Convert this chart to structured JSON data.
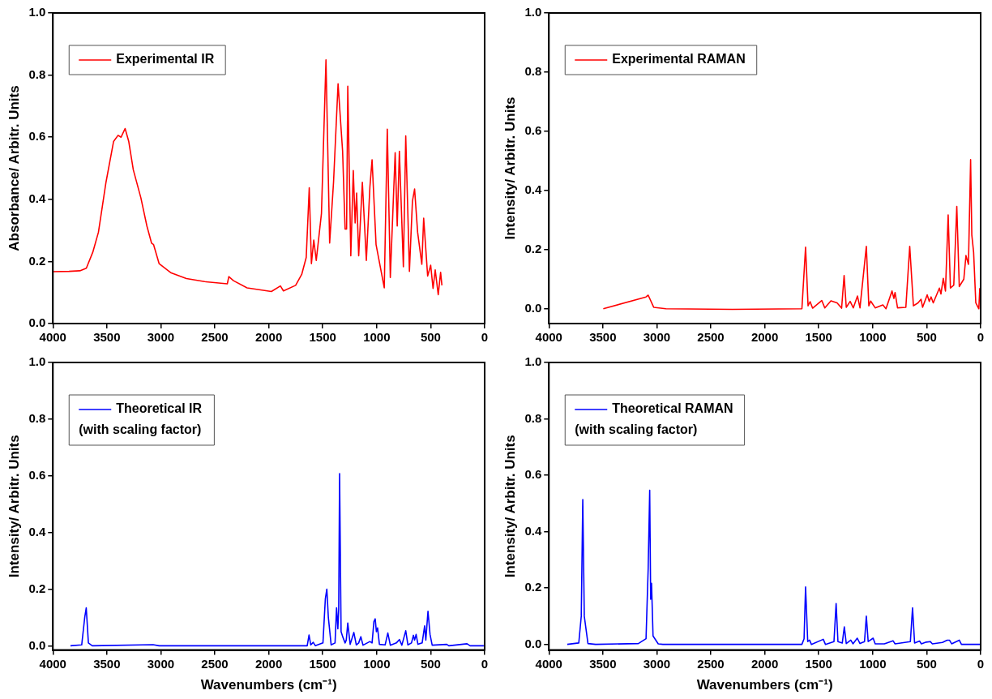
{
  "chart_data": [
    {
      "type": "line",
      "ylabel": "Absorbance/ Arbitr. Units",
      "xlim": [
        4000,
        0
      ],
      "xticks": [
        4000,
        3500,
        3000,
        2500,
        2000,
        1500,
        1000,
        500,
        0
      ],
      "ylim": [
        0,
        1
      ],
      "yticks": [
        {
          "value": 0,
          "label": "0.0"
        },
        {
          "value": 0.2,
          "label": "0.2"
        },
        {
          "value": 0.4,
          "label": "0.4"
        },
        {
          "value": 0.6,
          "label": "0.6"
        },
        {
          "value": 0.8,
          "label": "0.8"
        },
        {
          "value": 1,
          "label": "1.0"
        }
      ],
      "grid": false,
      "legend": "top left",
      "series": [
        {
          "name": "Experimental IR",
          "color": "#ff0000",
          "x": [
            4000,
            3850,
            3750,
            3690,
            3630,
            3578,
            3508,
            3438,
            3396,
            3368,
            3331,
            3297,
            3255,
            3185,
            3129,
            3086,
            3067,
            3016,
            2904,
            2763,
            2594,
            2384,
            2370,
            2327,
            2201,
            1976,
            1892,
            1864,
            1751,
            1695,
            1653,
            1625,
            1605,
            1583,
            1560,
            1512,
            1470,
            1436,
            1400,
            1358,
            1316,
            1293,
            1279,
            1268,
            1240,
            1217,
            1200,
            1186,
            1167,
            1133,
            1096,
            1063,
            1043,
            1006,
            930,
            902,
            874,
            829,
            810,
            790,
            753,
            731,
            697,
            669,
            649,
            621,
            582,
            565,
            528,
            500,
            478,
            458,
            430,
            408,
            396
          ],
          "values": [
            0.167,
            0.168,
            0.17,
            0.178,
            0.23,
            0.294,
            0.455,
            0.586,
            0.606,
            0.6,
            0.628,
            0.586,
            0.495,
            0.405,
            0.314,
            0.259,
            0.254,
            0.193,
            0.163,
            0.145,
            0.135,
            0.128,
            0.151,
            0.138,
            0.115,
            0.103,
            0.121,
            0.105,
            0.123,
            0.158,
            0.213,
            0.437,
            0.193,
            0.269,
            0.203,
            0.354,
            0.849,
            0.259,
            0.455,
            0.772,
            0.555,
            0.304,
            0.304,
            0.764,
            0.218,
            0.493,
            0.324,
            0.42,
            0.218,
            0.455,
            0.203,
            0.44,
            0.527,
            0.254,
            0.115,
            0.626,
            0.148,
            0.55,
            0.314,
            0.555,
            0.183,
            0.604,
            0.168,
            0.394,
            0.433,
            0.294,
            0.191,
            0.339,
            0.153,
            0.188,
            0.113,
            0.173,
            0.093,
            0.165,
            0.123
          ]
        }
      ]
    },
    {
      "type": "line",
      "ylabel": "Intensity/ Arbitr. Units",
      "xlim": [
        4000,
        0
      ],
      "xticks": [
        4000,
        3500,
        3000,
        2500,
        2000,
        1500,
        1000,
        500,
        0
      ],
      "ylim": [
        -0.05,
        1
      ],
      "yticks": [
        {
          "value": 0,
          "label": "0.0"
        },
        {
          "value": 0.2,
          "label": "0.2"
        },
        {
          "value": 0.4,
          "label": "0.4"
        },
        {
          "value": 0.6,
          "label": "0.6"
        },
        {
          "value": 0.8,
          "label": "0.8"
        },
        {
          "value": 1,
          "label": "1.0"
        }
      ],
      "grid": false,
      "legend": "top left",
      "series": [
        {
          "name": "Experimental RAMAN",
          "color": "#ff0000",
          "x": [
            3496,
            3100,
            3080,
            3029,
            2916,
            2300,
            1656,
            1622,
            1599,
            1580,
            1557,
            1472,
            1444,
            1387,
            1330,
            1288,
            1265,
            1245,
            1209,
            1180,
            1141,
            1118,
            1059,
            1036,
            1019,
            977,
            906,
            877,
            821,
            804,
            793,
            770,
            693,
            657,
            623,
            580,
            552,
            538,
            495,
            476,
            459,
            439,
            382,
            368,
            346,
            326,
            301,
            280,
            249,
            221,
            198,
            156,
            136,
            113,
            93,
            82,
            65,
            45,
            17,
            8
          ],
          "values": [
            0,
            0.04,
            0.046,
            0.005,
            0,
            -0.002,
            0,
            0.208,
            0.01,
            0.024,
            0.002,
            0.028,
            0.003,
            0.027,
            0.02,
            0.002,
            0.112,
            0.005,
            0.025,
            0.003,
            0.043,
            0.003,
            0.211,
            0.01,
            0.026,
            0.003,
            0.013,
            0,
            0.06,
            0.035,
            0.055,
            0.003,
            0.005,
            0.211,
            0.01,
            0.02,
            0.032,
            0.005,
            0.047,
            0.025,
            0.04,
            0.02,
            0.07,
            0.05,
            0.103,
            0.06,
            0.317,
            0.07,
            0.08,
            0.346,
            0.075,
            0.1,
            0.18,
            0.15,
            0.504,
            0.25,
            0.19,
            0.02,
            0,
            0.07
          ]
        }
      ]
    },
    {
      "type": "line",
      "xlabel": "Wavenumbers (cm⁻¹)",
      "ylabel": "Intensity/ Arbitr. Units",
      "xlim": [
        4000,
        0
      ],
      "xticks": [
        4000,
        3500,
        3000,
        2500,
        2000,
        1500,
        1000,
        500,
        0
      ],
      "ylim": [
        -0.015,
        1
      ],
      "yticks": [
        {
          "value": 0,
          "label": "0.0"
        },
        {
          "value": 0.2,
          "label": "0.2"
        },
        {
          "value": 0.4,
          "label": "0.4"
        },
        {
          "value": 0.6,
          "label": "0.6"
        },
        {
          "value": 0.8,
          "label": "0.8"
        },
        {
          "value": 1,
          "label": "1.0"
        }
      ],
      "grid": false,
      "legend": "top left",
      "series": [
        {
          "name": "Theoretical IR\n(with scaling factor)",
          "color": "#0000ff",
          "x": [
            3837,
            3733,
            3705,
            3691,
            3671,
            3635,
            3072,
            3016,
            1644,
            1627,
            1611,
            1588,
            1568,
            1498,
            1476,
            1462,
            1448,
            1422,
            1386,
            1372,
            1360,
            1352,
            1344,
            1330,
            1313,
            1293,
            1282,
            1268,
            1246,
            1212,
            1189,
            1167,
            1147,
            1127,
            1063,
            1043,
            1026,
            1014,
            1003,
            992,
            975,
            922,
            897,
            874,
            818,
            790,
            767,
            731,
            711,
            678,
            660,
            649,
            635,
            618,
            579,
            556,
            545,
            525,
            506,
            486,
            351,
            332,
            163,
            135,
            8
          ],
          "values": [
            0,
            0.003,
            0.1,
            0.134,
            0.01,
            0,
            0.004,
            0,
            0,
            0.038,
            0.003,
            0.012,
            0,
            0.01,
            0.165,
            0.2,
            0.1,
            0.003,
            0.01,
            0.134,
            0.06,
            0.13,
            0.608,
            0.05,
            0.03,
            0.01,
            0.02,
            0.08,
            0.005,
            0.047,
            0.003,
            0.01,
            0.032,
            0.002,
            0.015,
            0.01,
            0.085,
            0.095,
            0.05,
            0.063,
            0.005,
            0.003,
            0.045,
            0.002,
            0.01,
            0.022,
            0.002,
            0.053,
            0.003,
            0.01,
            0.037,
            0.02,
            0.04,
            0.005,
            0.01,
            0.07,
            0.02,
            0.122,
            0.04,
            0.002,
            0.005,
            0,
            0.007,
            0,
            0
          ]
        }
      ]
    },
    {
      "type": "line",
      "xlabel": "Wavenumbers (cm⁻¹)",
      "ylabel": "Intensity/ Arbitr. Units",
      "xlim": [
        4000,
        0
      ],
      "xticks": [
        4000,
        3500,
        3000,
        2500,
        2000,
        1500,
        1000,
        500,
        0
      ],
      "ylim": [
        -0.02,
        1
      ],
      "yticks": [
        {
          "value": 0,
          "label": "0.0"
        },
        {
          "value": 0.2,
          "label": "0.2"
        },
        {
          "value": 0.4,
          "label": "0.4"
        },
        {
          "value": 0.6,
          "label": "0.6"
        },
        {
          "value": 0.8,
          "label": "0.8"
        },
        {
          "value": 1,
          "label": "1.0"
        }
      ],
      "grid": false,
      "legend": "top left",
      "series": [
        {
          "name": "Theoretical RAMAN\n(with scaling factor)",
          "color": "#0000ff",
          "x": [
            3830,
            3723,
            3700,
            3686,
            3672,
            3638,
            3567,
            3171,
            3100,
            3080,
            3066,
            3057,
            3049,
            3035,
            2987,
            2944,
            1656,
            1636,
            1622,
            1602,
            1585,
            1568,
            1458,
            1438,
            1359,
            1339,
            1322,
            1282,
            1263,
            1245,
            1203,
            1183,
            1143,
            1118,
            1076,
            1059,
            1042,
            996,
            977,
            892,
            812,
            793,
            651,
            631,
            612,
            566,
            549,
            504,
            467,
            447,
            354,
            311,
            289,
            269,
            198,
            178,
            0
          ],
          "values": [
            0,
            0.005,
            0.1,
            0.514,
            0.1,
            0.003,
            0,
            0.003,
            0.02,
            0.27,
            0.547,
            0.16,
            0.217,
            0.03,
            0.002,
            0,
            0,
            0.02,
            0.204,
            0.01,
            0.015,
            0,
            0.018,
            0,
            0.01,
            0.145,
            0.01,
            0.005,
            0.062,
            0.003,
            0.015,
            0.002,
            0.022,
            0.003,
            0.01,
            0.1,
            0.01,
            0.022,
            0.002,
            0.002,
            0.013,
            0.002,
            0.01,
            0.13,
            0.005,
            0.012,
            0.002,
            0.008,
            0.01,
            0.002,
            0.007,
            0.015,
            0.015,
            0.002,
            0.015,
            0,
            0
          ]
        }
      ]
    }
  ]
}
